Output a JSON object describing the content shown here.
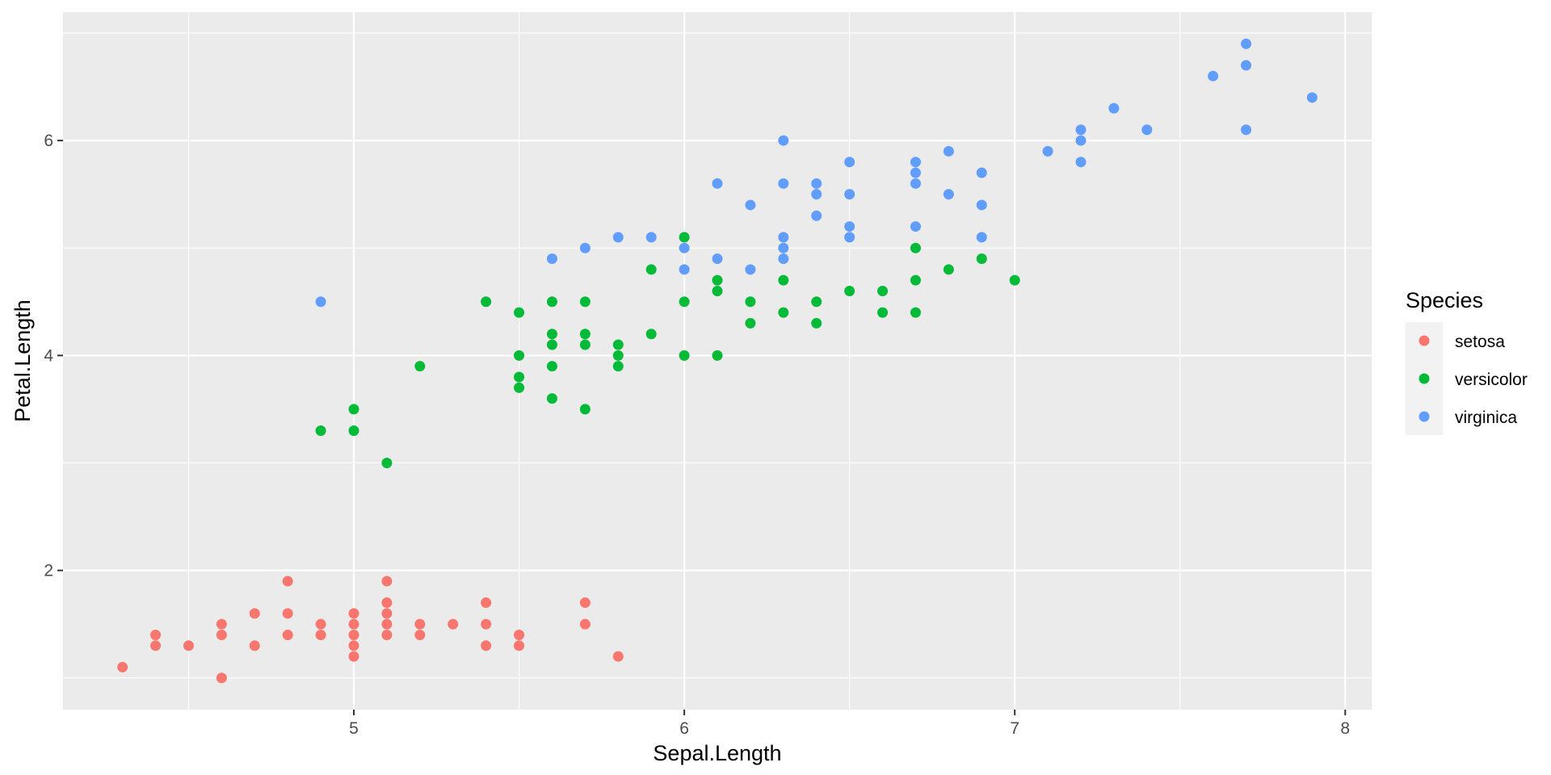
{
  "chart_data": {
    "type": "scatter",
    "title": "",
    "xlabel": "Sepal.Length",
    "ylabel": "Petal.Length",
    "xlim": [
      4.12,
      8.08
    ],
    "ylim": [
      0.705,
      7.195
    ],
    "x_ticks": [
      5,
      6,
      7,
      8
    ],
    "y_ticks": [
      2,
      4,
      6
    ],
    "x_tick_labels": [
      "5",
      "6",
      "7",
      "8"
    ],
    "y_tick_labels": [
      "2",
      "4",
      "6"
    ],
    "grid": true,
    "background": "#ebebeb",
    "legend": {
      "title": "Species",
      "placement": "right",
      "labels": [
        "setosa",
        "versicolor",
        "virginica"
      ]
    },
    "series": [
      {
        "name": "setosa",
        "color": "#f8766d",
        "points": [
          [
            4.3,
            1.1
          ],
          [
            4.4,
            1.3
          ],
          [
            4.4,
            1.4
          ],
          [
            4.5,
            1.3
          ],
          [
            4.6,
            1.0
          ],
          [
            4.6,
            1.4
          ],
          [
            4.6,
            1.5
          ],
          [
            4.7,
            1.3
          ],
          [
            4.7,
            1.6
          ],
          [
            4.8,
            1.4
          ],
          [
            4.8,
            1.6
          ],
          [
            4.8,
            1.9
          ],
          [
            4.9,
            1.4
          ],
          [
            4.9,
            1.5
          ],
          [
            5.0,
            1.2
          ],
          [
            5.0,
            1.3
          ],
          [
            5.0,
            1.4
          ],
          [
            5.0,
            1.5
          ],
          [
            5.0,
            1.6
          ],
          [
            5.1,
            1.4
          ],
          [
            5.1,
            1.5
          ],
          [
            5.1,
            1.6
          ],
          [
            5.1,
            1.7
          ],
          [
            5.1,
            1.9
          ],
          [
            5.2,
            1.4
          ],
          [
            5.2,
            1.5
          ],
          [
            5.3,
            1.5
          ],
          [
            5.4,
            1.3
          ],
          [
            5.4,
            1.5
          ],
          [
            5.4,
            1.7
          ],
          [
            5.5,
            1.3
          ],
          [
            5.5,
            1.4
          ],
          [
            5.7,
            1.5
          ],
          [
            5.7,
            1.7
          ],
          [
            5.8,
            1.2
          ]
        ]
      },
      {
        "name": "versicolor",
        "color": "#00ba38",
        "points": [
          [
            4.9,
            3.3
          ],
          [
            5.0,
            3.3
          ],
          [
            5.0,
            3.5
          ],
          [
            5.1,
            3.0
          ],
          [
            5.2,
            3.9
          ],
          [
            5.4,
            4.5
          ],
          [
            5.5,
            3.7
          ],
          [
            5.5,
            3.8
          ],
          [
            5.5,
            4.0
          ],
          [
            5.5,
            4.4
          ],
          [
            5.6,
            3.6
          ],
          [
            5.6,
            3.9
          ],
          [
            5.6,
            4.1
          ],
          [
            5.6,
            4.2
          ],
          [
            5.6,
            4.5
          ],
          [
            5.7,
            3.5
          ],
          [
            5.7,
            4.1
          ],
          [
            5.7,
            4.2
          ],
          [
            5.7,
            4.5
          ],
          [
            5.8,
            3.9
          ],
          [
            5.8,
            4.0
          ],
          [
            5.8,
            4.1
          ],
          [
            5.9,
            4.2
          ],
          [
            5.9,
            4.8
          ],
          [
            6.0,
            4.0
          ],
          [
            6.0,
            4.5
          ],
          [
            6.0,
            5.1
          ],
          [
            6.1,
            4.0
          ],
          [
            6.1,
            4.6
          ],
          [
            6.1,
            4.7
          ],
          [
            6.2,
            4.3
          ],
          [
            6.2,
            4.5
          ],
          [
            6.3,
            4.4
          ],
          [
            6.3,
            4.7
          ],
          [
            6.4,
            4.3
          ],
          [
            6.4,
            4.5
          ],
          [
            6.5,
            4.6
          ],
          [
            6.6,
            4.4
          ],
          [
            6.6,
            4.6
          ],
          [
            6.7,
            4.4
          ],
          [
            6.7,
            4.7
          ],
          [
            6.7,
            5.0
          ],
          [
            6.8,
            4.8
          ],
          [
            6.9,
            4.9
          ],
          [
            7.0,
            4.7
          ]
        ]
      },
      {
        "name": "virginica",
        "color": "#619cff",
        "points": [
          [
            4.9,
            4.5
          ],
          [
            5.6,
            4.9
          ],
          [
            5.7,
            5.0
          ],
          [
            5.8,
            5.1
          ],
          [
            5.9,
            5.1
          ],
          [
            6.0,
            4.8
          ],
          [
            6.0,
            5.0
          ],
          [
            6.1,
            4.9
          ],
          [
            6.1,
            5.6
          ],
          [
            6.2,
            4.8
          ],
          [
            6.2,
            5.4
          ],
          [
            6.3,
            4.9
          ],
          [
            6.3,
            5.0
          ],
          [
            6.3,
            5.1
          ],
          [
            6.3,
            5.6
          ],
          [
            6.3,
            6.0
          ],
          [
            6.4,
            5.3
          ],
          [
            6.4,
            5.5
          ],
          [
            6.4,
            5.6
          ],
          [
            6.5,
            5.1
          ],
          [
            6.5,
            5.2
          ],
          [
            6.5,
            5.5
          ],
          [
            6.5,
            5.8
          ],
          [
            6.7,
            5.2
          ],
          [
            6.7,
            5.6
          ],
          [
            6.7,
            5.7
          ],
          [
            6.7,
            5.8
          ],
          [
            6.8,
            5.5
          ],
          [
            6.8,
            5.9
          ],
          [
            6.9,
            5.1
          ],
          [
            6.9,
            5.4
          ],
          [
            6.9,
            5.7
          ],
          [
            7.1,
            5.9
          ],
          [
            7.2,
            5.8
          ],
          [
            7.2,
            6.0
          ],
          [
            7.2,
            6.1
          ],
          [
            7.3,
            6.3
          ],
          [
            7.4,
            6.1
          ],
          [
            7.6,
            6.6
          ],
          [
            7.7,
            6.1
          ],
          [
            7.7,
            6.7
          ],
          [
            7.7,
            6.9
          ],
          [
            7.9,
            6.4
          ]
        ]
      }
    ]
  }
}
